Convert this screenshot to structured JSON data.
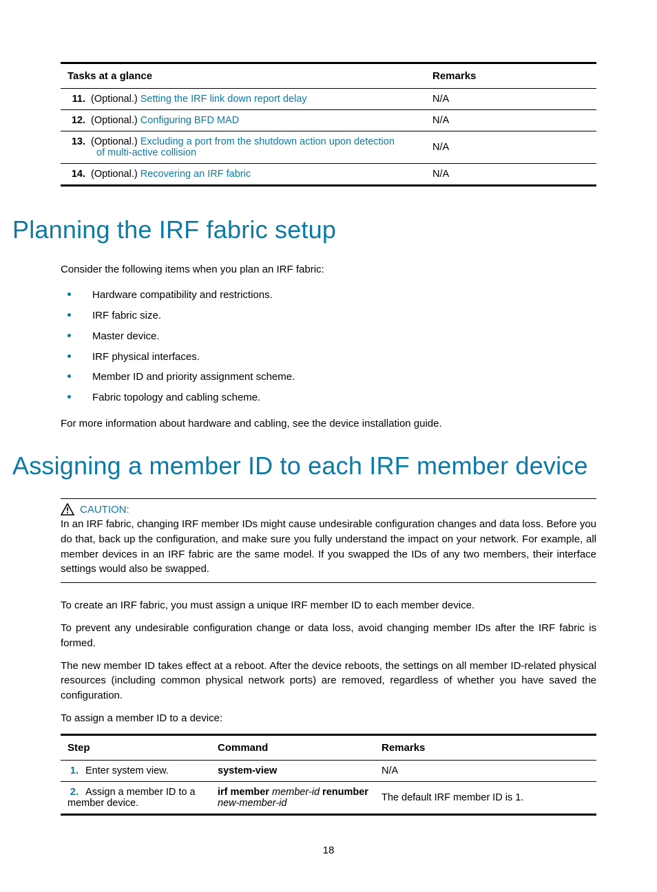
{
  "colors": {
    "accent": "#0d7aa5",
    "text": "#000000",
    "background": "#ffffff"
  },
  "tasksTable": {
    "headers": {
      "tasks": "Tasks at a glance",
      "remarks": "Remarks"
    },
    "rows": [
      {
        "num": "11.",
        "optional": "(Optional.) ",
        "link": "Setting the IRF link down report delay",
        "linkCont": "",
        "remarks": "N/A"
      },
      {
        "num": "12.",
        "optional": "(Optional.) ",
        "link": "Configuring BFD MAD",
        "linkCont": "",
        "remarks": "N/A"
      },
      {
        "num": "13.",
        "optional": "(Optional.) ",
        "link": "Excluding a port from the shutdown action upon detection",
        "linkCont": "of multi-active collision",
        "remarks": "N/A"
      },
      {
        "num": "14.",
        "optional": "(Optional.) ",
        "link": "Recovering an IRF fabric",
        "linkCont": "",
        "remarks": "N/A"
      }
    ]
  },
  "heading1": "Planning the IRF fabric setup",
  "intro1": "Consider the following items when you plan an IRF fabric:",
  "bullets": [
    "Hardware compatibility and restrictions.",
    "IRF fabric size.",
    "Master device.",
    "IRF physical interfaces.",
    "Member ID and priority assignment scheme.",
    "Fabric topology and cabling scheme."
  ],
  "after_bullets": "For more information about hardware and cabling, see the device installation guide.",
  "heading2": "Assigning a member ID to each IRF member device",
  "caution": {
    "label": "CAUTION:",
    "text": "In an IRF fabric, changing IRF member IDs might cause undesirable configuration changes and data loss. Before you do that, back up the configuration, and make sure you fully understand the impact on your network. For example, all member devices in an IRF fabric are the same model. If you swapped the IDs of any two members, their interface settings would also be swapped."
  },
  "para_a": "To create an IRF fabric, you must assign a unique IRF member ID to each member device.",
  "para_b": "To prevent any undesirable configuration change or data loss, avoid changing member IDs after the IRF fabric is formed.",
  "para_c": "The new member ID takes effect at a reboot. After the device reboots, the settings on all member ID-related physical resources (including common physical network ports) are removed, regardless of whether you have saved the configuration.",
  "para_d": "To assign a member ID to a device:",
  "stepsTable": {
    "headers": {
      "step": "Step",
      "command": "Command",
      "remarks": "Remarks"
    },
    "rows": [
      {
        "num": "1.",
        "step": "Enter system view.",
        "cmd_parts": [
          {
            "t": "system-view",
            "style": "bold"
          }
        ],
        "remarks": "N/A"
      },
      {
        "num": "2.",
        "step": "Assign a member ID to a member device.",
        "cmd_parts": [
          {
            "t": "irf member ",
            "style": "bold"
          },
          {
            "t": "member-id ",
            "style": "ital"
          },
          {
            "t": "renumber",
            "style": "bold"
          },
          {
            "t": "\n",
            "style": ""
          },
          {
            "t": "new-member-id",
            "style": "ital"
          }
        ],
        "remarks": "The default IRF member ID is 1."
      }
    ]
  },
  "pageNumber": "18"
}
